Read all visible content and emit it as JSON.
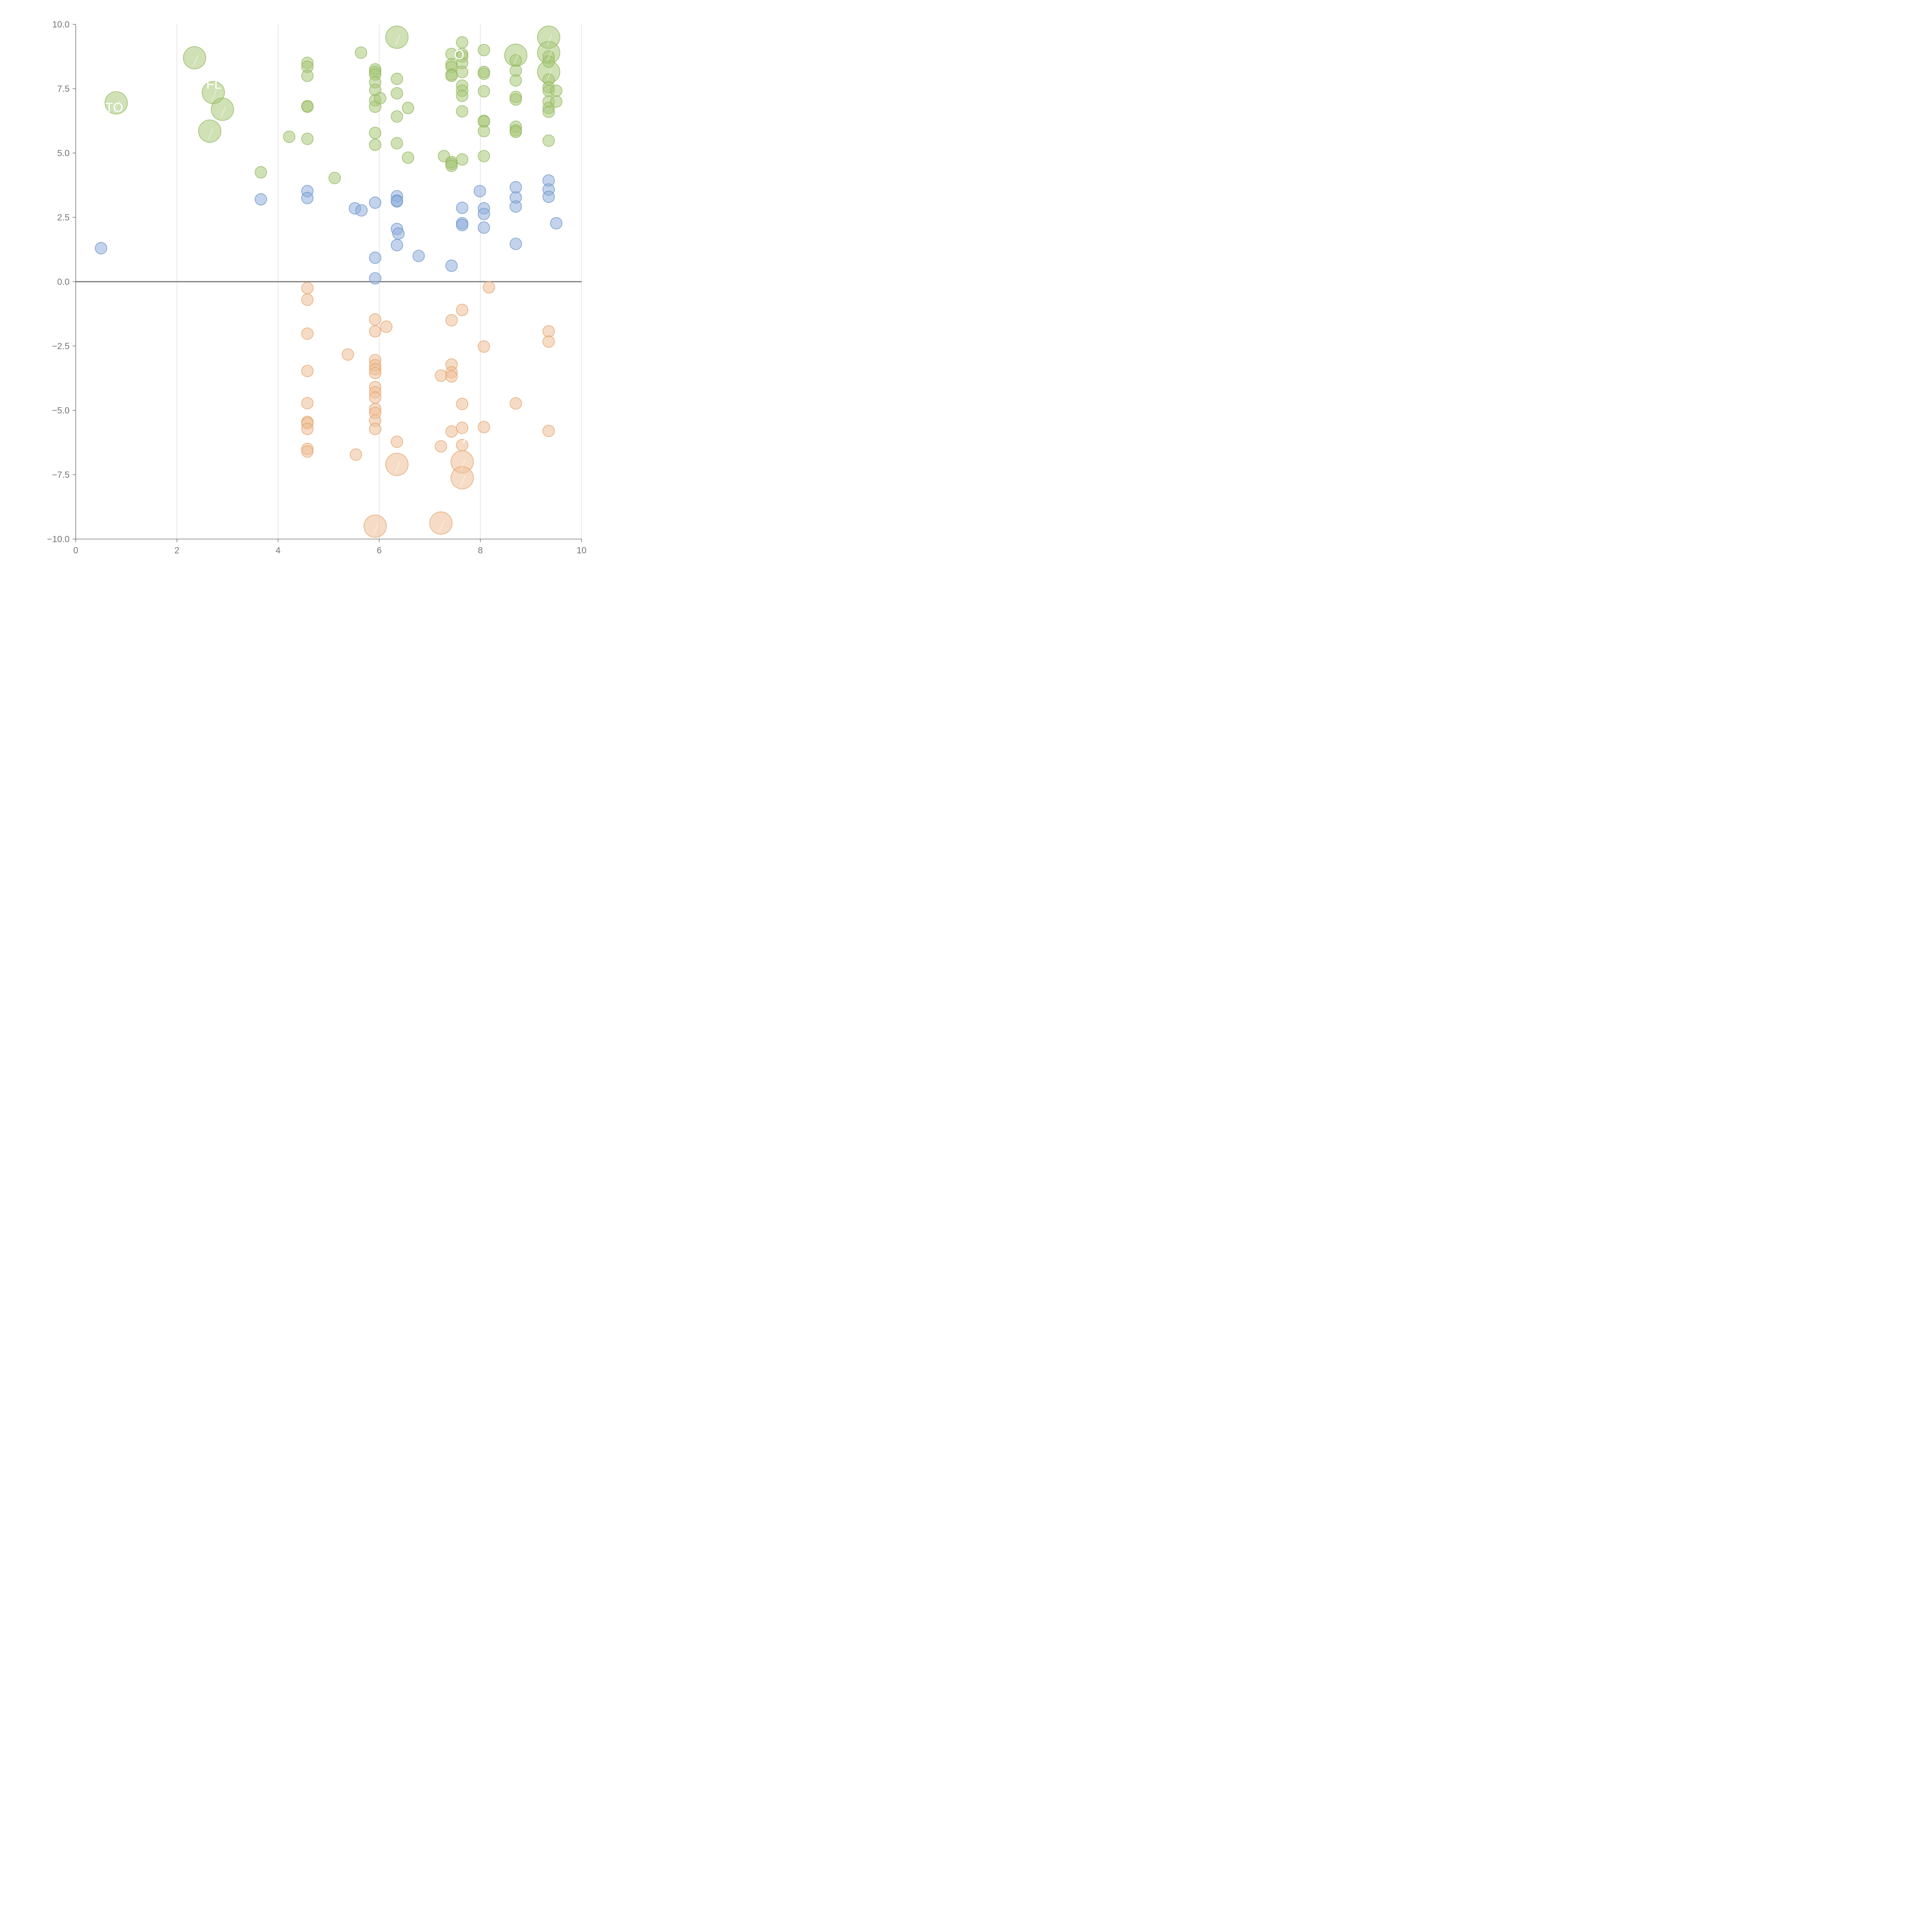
{
  "chart_data": {
    "type": "scatter",
    "title": "",
    "xlabel": "",
    "ylabel": "",
    "xlim": [
      0,
      10
    ],
    "ylim": [
      -10,
      10
    ],
    "x_ticks": [
      0,
      2,
      4,
      6,
      8,
      10
    ],
    "y_ticks": [
      -10,
      -7.5,
      -5,
      -2.5,
      0,
      2.5,
      5,
      7.5,
      10
    ],
    "x_tick_labels": [
      "0",
      "2",
      "4",
      "6",
      "8",
      "10"
    ],
    "y_tick_labels": [
      "−10.0",
      "−7.5",
      "−5.0",
      "−2.5",
      "0.0",
      "2.5",
      "5.0",
      "7.5",
      "10.0"
    ],
    "grid": "vertical",
    "zero_line": true,
    "bubble_size_meaning": "small = ordinary point, large = highlighted point",
    "series": [
      {
        "color": "#a9c97a",
        "stroke": "#93b860",
        "points": [
          [
            0.8,
            6.95,
            2
          ],
          [
            2.35,
            8.7,
            2
          ],
          [
            2.72,
            7.35,
            2
          ],
          [
            2.9,
            6.7,
            2
          ],
          [
            2.65,
            5.85,
            2
          ],
          [
            6.35,
            9.5,
            2
          ],
          [
            8.7,
            8.8,
            2
          ],
          [
            9.35,
            9.5,
            2
          ],
          [
            9.35,
            8.9,
            2
          ],
          [
            9.35,
            8.15,
            2
          ],
          [
            3.66,
            4.25,
            1
          ],
          [
            4.22,
            5.63,
            1
          ],
          [
            4.58,
            8.5,
            1
          ],
          [
            4.58,
            8.35,
            1
          ],
          [
            4.58,
            8.0,
            1
          ],
          [
            4.58,
            6.82,
            1
          ],
          [
            4.58,
            6.8,
            1
          ],
          [
            4.58,
            5.55,
            1
          ],
          [
            5.12,
            4.03,
            1
          ],
          [
            5.64,
            8.9,
            1
          ],
          [
            5.92,
            8.25,
            1
          ],
          [
            5.92,
            8.15,
            1
          ],
          [
            5.92,
            8.05,
            1
          ],
          [
            5.92,
            7.75,
            1
          ],
          [
            5.92,
            7.45,
            1
          ],
          [
            5.92,
            7.05,
            1
          ],
          [
            5.92,
            6.8,
            1
          ],
          [
            5.92,
            5.78,
            1
          ],
          [
            5.92,
            5.32,
            1
          ],
          [
            6.02,
            7.13,
            1
          ],
          [
            6.35,
            7.88,
            1
          ],
          [
            6.35,
            7.32,
            1
          ],
          [
            6.35,
            6.42,
            1
          ],
          [
            6.35,
            5.38,
            1
          ],
          [
            6.57,
            6.75,
            1
          ],
          [
            6.57,
            4.82,
            1
          ],
          [
            7.28,
            4.88,
            1
          ],
          [
            7.43,
            8.85,
            1
          ],
          [
            7.43,
            8.45,
            1
          ],
          [
            7.43,
            8.35,
            1
          ],
          [
            7.43,
            8.05,
            1
          ],
          [
            7.43,
            8.0,
            1
          ],
          [
            7.43,
            4.65,
            1
          ],
          [
            7.43,
            4.58,
            1
          ],
          [
            7.43,
            4.5,
            1
          ],
          [
            7.64,
            9.3,
            1
          ],
          [
            7.64,
            8.85,
            1
          ],
          [
            7.64,
            8.75,
            1
          ],
          [
            7.64,
            8.5,
            1
          ],
          [
            7.64,
            8.15,
            1
          ],
          [
            7.64,
            7.62,
            1
          ],
          [
            7.64,
            7.42,
            1
          ],
          [
            7.64,
            7.22,
            1
          ],
          [
            7.64,
            6.62,
            1
          ],
          [
            7.64,
            4.75,
            1
          ],
          [
            8.07,
            9.0,
            1
          ],
          [
            8.07,
            8.15,
            1
          ],
          [
            8.07,
            8.08,
            1
          ],
          [
            8.07,
            7.4,
            1
          ],
          [
            8.07,
            6.25,
            1
          ],
          [
            8.07,
            6.22,
            1
          ],
          [
            8.07,
            5.85,
            1
          ],
          [
            8.07,
            4.88,
            1
          ],
          [
            8.7,
            8.6,
            1
          ],
          [
            8.7,
            8.2,
            1
          ],
          [
            8.7,
            7.82,
            1
          ],
          [
            8.7,
            7.18,
            1
          ],
          [
            8.7,
            7.08,
            1
          ],
          [
            8.7,
            6.02,
            1
          ],
          [
            8.7,
            5.88,
            1
          ],
          [
            8.7,
            5.82,
            1
          ],
          [
            9.35,
            8.75,
            1
          ],
          [
            9.35,
            8.55,
            1
          ],
          [
            9.35,
            7.85,
            1
          ],
          [
            9.35,
            7.55,
            1
          ],
          [
            9.35,
            7.42,
            1
          ],
          [
            9.35,
            7.0,
            1
          ],
          [
            9.35,
            6.75,
            1
          ],
          [
            9.35,
            6.6,
            1
          ],
          [
            9.35,
            5.48,
            1
          ],
          [
            9.5,
            7.42,
            1
          ],
          [
            9.5,
            7.0,
            1
          ]
        ]
      },
      {
        "color": "#8faedb",
        "stroke": "#6f95cc",
        "points": [
          [
            0.5,
            1.3,
            1
          ],
          [
            3.66,
            3.2,
            1
          ],
          [
            4.58,
            3.52,
            1
          ],
          [
            4.58,
            3.25,
            1
          ],
          [
            5.52,
            2.85,
            1
          ],
          [
            5.65,
            2.77,
            1
          ],
          [
            5.92,
            3.07,
            1
          ],
          [
            5.92,
            0.93,
            1
          ],
          [
            5.92,
            0.13,
            1
          ],
          [
            6.35,
            3.32,
            1
          ],
          [
            6.35,
            3.15,
            1
          ],
          [
            6.35,
            3.12,
            1
          ],
          [
            6.35,
            2.05,
            1
          ],
          [
            6.38,
            1.87,
            1
          ],
          [
            6.35,
            1.42,
            1
          ],
          [
            6.78,
            1.0,
            1
          ],
          [
            7.43,
            0.62,
            1
          ],
          [
            7.64,
            2.87,
            1
          ],
          [
            7.64,
            2.27,
            1
          ],
          [
            7.64,
            2.2,
            1
          ],
          [
            7.99,
            3.52,
            1
          ],
          [
            8.07,
            2.85,
            1
          ],
          [
            8.07,
            2.63,
            1
          ],
          [
            8.07,
            2.1,
            1
          ],
          [
            8.7,
            3.67,
            1
          ],
          [
            8.7,
            3.27,
            1
          ],
          [
            8.7,
            2.92,
            1
          ],
          [
            8.7,
            1.47,
            1
          ],
          [
            9.35,
            3.93,
            1
          ],
          [
            9.35,
            3.58,
            1
          ],
          [
            9.35,
            3.3,
            1
          ],
          [
            9.5,
            2.27,
            1
          ]
        ]
      },
      {
        "color": "#eebf97",
        "stroke": "#e3a46d",
        "points": [
          [
            4.58,
            -0.25,
            1
          ],
          [
            4.58,
            -0.7,
            1
          ],
          [
            4.58,
            -2.02,
            1
          ],
          [
            4.58,
            -3.47,
            1
          ],
          [
            4.58,
            -4.72,
            1
          ],
          [
            4.58,
            -5.45,
            1
          ],
          [
            4.58,
            -5.5,
            1
          ],
          [
            4.58,
            -5.72,
            1
          ],
          [
            4.58,
            -6.5,
            1
          ],
          [
            4.58,
            -6.6,
            1
          ],
          [
            5.38,
            -2.83,
            1
          ],
          [
            5.54,
            -6.72,
            1
          ],
          [
            5.92,
            -1.47,
            1
          ],
          [
            5.92,
            -1.93,
            1
          ],
          [
            5.92,
            -3.05,
            1
          ],
          [
            5.92,
            -3.25,
            1
          ],
          [
            5.92,
            -3.4,
            1
          ],
          [
            5.92,
            -3.55,
            1
          ],
          [
            5.92,
            -4.1,
            1
          ],
          [
            5.92,
            -4.3,
            1
          ],
          [
            5.92,
            -4.5,
            1
          ],
          [
            5.92,
            -4.95,
            1
          ],
          [
            5.92,
            -5.1,
            1
          ],
          [
            5.92,
            -5.4,
            1
          ],
          [
            5.92,
            -5.72,
            1
          ],
          [
            6.14,
            -1.75,
            1
          ],
          [
            6.35,
            -6.22,
            1
          ],
          [
            7.22,
            -3.65,
            1
          ],
          [
            7.22,
            -6.4,
            1
          ],
          [
            7.43,
            -1.5,
            1
          ],
          [
            7.43,
            -3.22,
            1
          ],
          [
            7.43,
            -3.52,
            1
          ],
          [
            7.43,
            -3.68,
            1
          ],
          [
            7.43,
            -5.82,
            1
          ],
          [
            7.64,
            -1.1,
            1
          ],
          [
            7.64,
            -4.75,
            1
          ],
          [
            7.64,
            -5.68,
            1
          ],
          [
            7.64,
            -6.35,
            1
          ],
          [
            8.07,
            -2.52,
            1
          ],
          [
            8.07,
            -5.65,
            1
          ],
          [
            8.17,
            -0.22,
            1
          ],
          [
            8.7,
            -4.73,
            1
          ],
          [
            9.35,
            -1.93,
            1
          ],
          [
            9.35,
            -2.33,
            1
          ],
          [
            9.35,
            -5.8,
            1
          ],
          [
            6.35,
            -7.1,
            2
          ],
          [
            7.64,
            -7.0,
            2
          ],
          [
            7.64,
            -7.62,
            2
          ],
          [
            5.92,
            -9.5,
            2
          ],
          [
            7.22,
            -9.38,
            2
          ]
        ]
      }
    ],
    "annotations": [
      {
        "text": "TO",
        "x": 0.58,
        "y": 6.6
      },
      {
        "text": "FL",
        "x": 2.58,
        "y": 7.5
      },
      {
        "text": "O",
        "x": 7.48,
        "y": 8.65
      },
      {
        "text": "X",
        "x": 7.64,
        "y": -6.25
      }
    ]
  }
}
